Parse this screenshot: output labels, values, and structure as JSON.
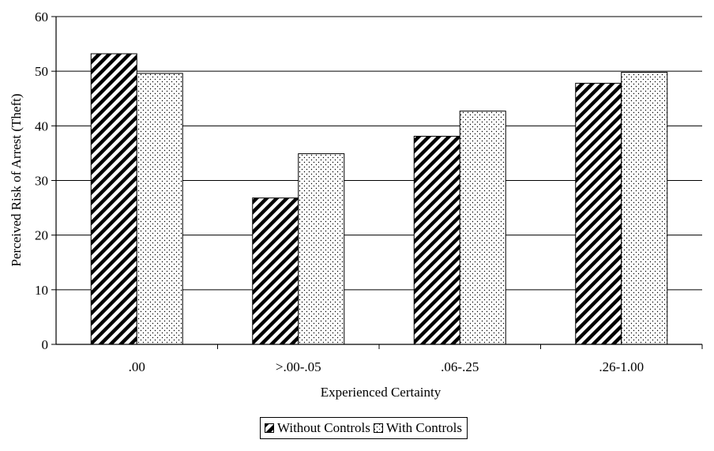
{
  "chart_data": {
    "type": "bar",
    "title": "",
    "xlabel": "Experienced Certainty",
    "ylabel": "Perceived Risk of Arrest (Theft)",
    "categories": [
      ".00",
      ">.00-.05",
      ".06-.25",
      ".26-1.00"
    ],
    "ylim": [
      0,
      60
    ],
    "yticks": [
      0,
      10,
      20,
      30,
      40,
      50,
      60
    ],
    "grid": true,
    "legend_position": "bottom",
    "series": [
      {
        "name": "Without Controls",
        "pattern": "diagonal-hatch",
        "values": [
          53.2,
          26.8,
          38.1,
          47.8
        ]
      },
      {
        "name": "With Controls",
        "pattern": "dots",
        "values": [
          49.6,
          34.9,
          42.7,
          49.8
        ]
      }
    ]
  }
}
